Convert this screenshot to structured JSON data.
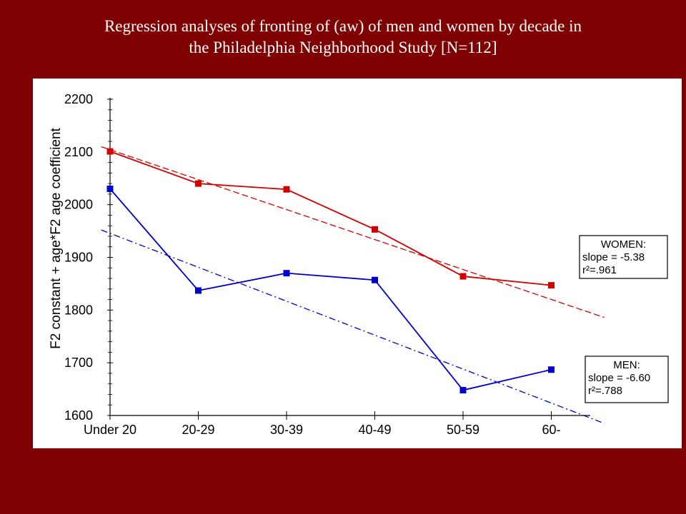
{
  "title": {
    "line1": "Regression analyses of fronting of (aw) of men and women by decade in",
    "line2": "the Philadelphia Neighborhood Study [N=112]"
  },
  "colors": {
    "background": "#7f0000",
    "panel": "#ffffff",
    "women": "#d40000",
    "men": "#0000cc",
    "text": "#000000"
  },
  "chart_data": {
    "type": "line",
    "title": "",
    "xlabel": "",
    "ylabel": "F2 constant + age*F2 age coefficient",
    "categories": [
      "Under 20",
      "20-29",
      "30-39",
      "40-49",
      "50-59",
      "60-"
    ],
    "ylim": [
      1600,
      2200
    ],
    "yticks": [
      1600,
      1700,
      1800,
      1900,
      2000,
      2100,
      2200
    ],
    "grid": false,
    "series": [
      {
        "key": "women",
        "name": "WOMEN",
        "color": "#d40000",
        "values": [
          2101,
          2040,
          2029,
          1953,
          1864,
          1847
        ],
        "trend": {
          "start": [
            -0.1,
            2110
          ],
          "end": [
            5.6,
            1786
          ],
          "style": "dashed"
        },
        "annotation": {
          "lines": [
            "WOMEN:",
            "slope = -5.38",
            "r²=.961"
          ]
        }
      },
      {
        "key": "men",
        "name": "MEN",
        "color": "#0000cc",
        "values": [
          2030,
          1837,
          1870,
          1857,
          1648,
          1687
        ],
        "trend": {
          "start": [
            -0.1,
            1952
          ],
          "end": [
            5.6,
            1585
          ],
          "style": "dashdot"
        },
        "annotation": {
          "lines": [
            "MEN:",
            "slope = -6.60",
            "r²=.788"
          ]
        }
      }
    ]
  }
}
